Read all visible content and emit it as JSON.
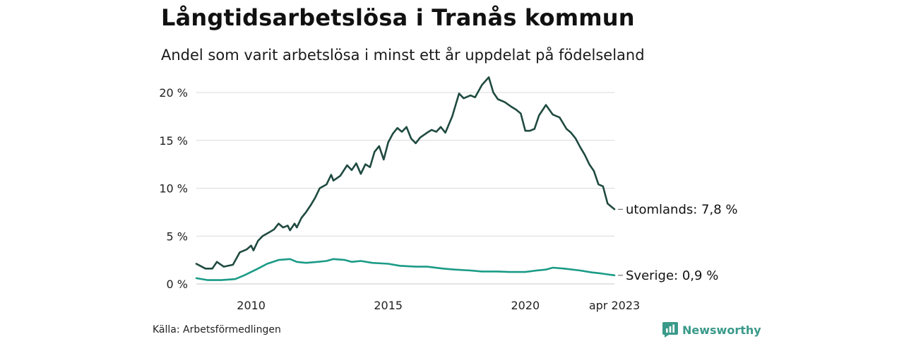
{
  "title": "Långtidsarbetslösa i Tranås kommun",
  "subtitle": "Andel som varit arbetslösa i minst ett år uppdelat på födelseland",
  "source": "Källa: Arbetsförmedlingen",
  "brand": {
    "name": "Newsworthy",
    "icon": "newsworthy-logo-icon"
  },
  "colors": {
    "utomlands": "#1f4a40",
    "sverige": "#1a9b87",
    "grid": "#d9d9d9"
  },
  "chart_data": {
    "type": "line",
    "title": "Långtidsarbetslösa i Tranås kommun",
    "subtitle": "Andel som varit arbetslösa i minst ett år uppdelat på födelseland",
    "ylim": [
      0,
      21.7
    ],
    "y_ticks": [
      {
        "value": 0,
        "label": "0 %"
      },
      {
        "value": 5,
        "label": "5 %"
      },
      {
        "value": 10,
        "label": "10 %"
      },
      {
        "value": 15,
        "label": "15 %"
      },
      {
        "value": 20,
        "label": "20 %"
      }
    ],
    "xlim": [
      "2008-01",
      "2023-04"
    ],
    "x_ticks": [
      {
        "value": "2010-01",
        "label": "2010"
      },
      {
        "value": "2015-01",
        "label": "2015"
      },
      {
        "value": "2020-01",
        "label": "2020"
      },
      {
        "value": "2023-04",
        "label": "apr 2023"
      }
    ],
    "grid": "horizontal",
    "series": [
      {
        "name": "utomlands",
        "end_label": "utomlands: 7,8 %",
        "points": [
          [
            "2008-01",
            2.1
          ],
          [
            "2008-05",
            1.6
          ],
          [
            "2008-08",
            1.6
          ],
          [
            "2008-10",
            2.3
          ],
          [
            "2009-01",
            1.8
          ],
          [
            "2009-05",
            2.0
          ],
          [
            "2009-08",
            3.3
          ],
          [
            "2009-11",
            3.6
          ],
          [
            "2010-01",
            4.0
          ],
          [
            "2010-02",
            3.5
          ],
          [
            "2010-04",
            4.5
          ],
          [
            "2010-06",
            5.0
          ],
          [
            "2010-09",
            5.4
          ],
          [
            "2010-11",
            5.7
          ],
          [
            "2011-01",
            6.3
          ],
          [
            "2011-03",
            5.9
          ],
          [
            "2011-05",
            6.1
          ],
          [
            "2011-06",
            5.6
          ],
          [
            "2011-08",
            6.3
          ],
          [
            "2011-09",
            5.9
          ],
          [
            "2011-11",
            6.9
          ],
          [
            "2012-01",
            7.5
          ],
          [
            "2012-03",
            8.2
          ],
          [
            "2012-05",
            9.0
          ],
          [
            "2012-07",
            10.0
          ],
          [
            "2012-10",
            10.4
          ],
          [
            "2012-12",
            11.4
          ],
          [
            "2013-01",
            10.8
          ],
          [
            "2013-04",
            11.3
          ],
          [
            "2013-07",
            12.4
          ],
          [
            "2013-09",
            11.9
          ],
          [
            "2013-11",
            12.6
          ],
          [
            "2014-01",
            11.5
          ],
          [
            "2014-03",
            12.5
          ],
          [
            "2014-05",
            12.2
          ],
          [
            "2014-07",
            13.8
          ],
          [
            "2014-09",
            14.4
          ],
          [
            "2014-11",
            13.0
          ],
          [
            "2015-01",
            14.8
          ],
          [
            "2015-03",
            15.7
          ],
          [
            "2015-05",
            16.3
          ],
          [
            "2015-07",
            15.9
          ],
          [
            "2015-09",
            16.4
          ],
          [
            "2015-11",
            15.2
          ],
          [
            "2016-01",
            14.7
          ],
          [
            "2016-03",
            15.3
          ],
          [
            "2016-06",
            15.8
          ],
          [
            "2016-08",
            16.1
          ],
          [
            "2016-10",
            15.9
          ],
          [
            "2016-12",
            16.4
          ],
          [
            "2017-02",
            15.8
          ],
          [
            "2017-05",
            17.5
          ],
          [
            "2017-08",
            19.9
          ],
          [
            "2017-10",
            19.4
          ],
          [
            "2018-01",
            19.7
          ],
          [
            "2018-03",
            19.5
          ],
          [
            "2018-06",
            20.8
          ],
          [
            "2018-09",
            21.6
          ],
          [
            "2018-11",
            20.0
          ],
          [
            "2019-01",
            19.3
          ],
          [
            "2019-04",
            19.0
          ],
          [
            "2019-07",
            18.5
          ],
          [
            "2019-09",
            18.2
          ],
          [
            "2019-11",
            17.8
          ],
          [
            "2020-01",
            16.0
          ],
          [
            "2020-03",
            16.0
          ],
          [
            "2020-05",
            16.2
          ],
          [
            "2020-07",
            17.6
          ],
          [
            "2020-10",
            18.7
          ],
          [
            "2021-01",
            17.7
          ],
          [
            "2021-04",
            17.4
          ],
          [
            "2021-07",
            16.2
          ],
          [
            "2021-09",
            15.8
          ],
          [
            "2021-11",
            15.2
          ],
          [
            "2022-01",
            14.3
          ],
          [
            "2022-03",
            13.5
          ],
          [
            "2022-05",
            12.5
          ],
          [
            "2022-07",
            11.8
          ],
          [
            "2022-09",
            10.4
          ],
          [
            "2022-11",
            10.2
          ],
          [
            "2023-01",
            8.4
          ],
          [
            "2023-04",
            7.8
          ]
        ]
      },
      {
        "name": "Sverige",
        "end_label": "Sverige: 0,9 %",
        "points": [
          [
            "2008-01",
            0.6
          ],
          [
            "2008-06",
            0.4
          ],
          [
            "2008-12",
            0.4
          ],
          [
            "2009-06",
            0.5
          ],
          [
            "2009-10",
            0.9
          ],
          [
            "2010-04",
            1.6
          ],
          [
            "2010-08",
            2.1
          ],
          [
            "2011-01",
            2.5
          ],
          [
            "2011-06",
            2.6
          ],
          [
            "2011-09",
            2.3
          ],
          [
            "2012-01",
            2.2
          ],
          [
            "2012-06",
            2.3
          ],
          [
            "2012-10",
            2.4
          ],
          [
            "2013-01",
            2.6
          ],
          [
            "2013-06",
            2.5
          ],
          [
            "2013-09",
            2.3
          ],
          [
            "2014-01",
            2.4
          ],
          [
            "2014-06",
            2.2
          ],
          [
            "2015-01",
            2.1
          ],
          [
            "2015-06",
            1.9
          ],
          [
            "2016-01",
            1.8
          ],
          [
            "2016-06",
            1.8
          ],
          [
            "2017-01",
            1.6
          ],
          [
            "2017-06",
            1.5
          ],
          [
            "2018-01",
            1.4
          ],
          [
            "2018-06",
            1.3
          ],
          [
            "2019-01",
            1.3
          ],
          [
            "2019-06",
            1.25
          ],
          [
            "2020-01",
            1.25
          ],
          [
            "2020-06",
            1.4
          ],
          [
            "2020-10",
            1.5
          ],
          [
            "2021-01",
            1.7
          ],
          [
            "2021-06",
            1.6
          ],
          [
            "2022-01",
            1.4
          ],
          [
            "2022-06",
            1.2
          ],
          [
            "2022-10",
            1.1
          ],
          [
            "2023-01",
            1.0
          ],
          [
            "2023-04",
            0.9
          ]
        ]
      }
    ]
  }
}
